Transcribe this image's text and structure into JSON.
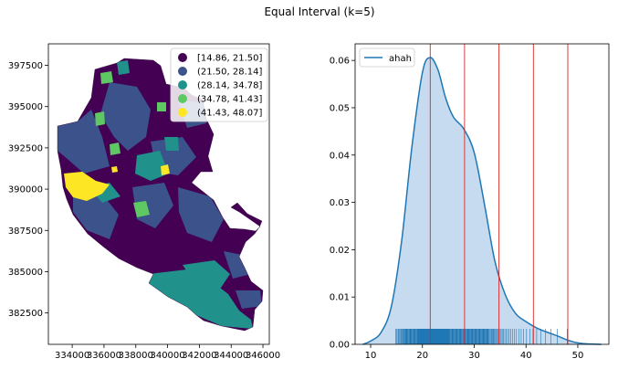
{
  "title": "Equal Interval (k=5)",
  "colors": {
    "class1": "#440154",
    "class2": "#3b528b",
    "class3": "#21918c",
    "class4": "#5ec962",
    "class5": "#fde725",
    "kde_line": "#1f77b4",
    "kde_fill": "#c6dbef",
    "rug": "#1f77b4",
    "bin_line": "#d62728"
  },
  "chart_data": [
    {
      "type": "map",
      "title": "",
      "xlabel": "",
      "ylabel": "",
      "xticks": [
        "334000",
        "336000",
        "338000",
        "340000",
        "342000",
        "344000",
        "346000"
      ],
      "yticks": [
        "382500",
        "385000",
        "387500",
        "390000",
        "392500",
        "395000",
        "397500"
      ],
      "xlim": [
        332500,
        346400
      ],
      "ylim": [
        380600,
        398800
      ],
      "legend_position": "top-right",
      "legend": [
        {
          "label": "[14.86, 21.50]",
          "color": "#440154"
        },
        {
          "label": "(21.50, 28.14]",
          "color": "#3b528b"
        },
        {
          "label": "(28.14, 34.78]",
          "color": "#21918c"
        },
        {
          "label": "(34.78, 41.43]",
          "color": "#5ec962"
        },
        {
          "label": "(41.43, 48.07]",
          "color": "#fde725"
        }
      ]
    },
    {
      "type": "area",
      "title": "",
      "xlabel": "",
      "ylabel": "",
      "xlim": [
        7,
        56
      ],
      "ylim": [
        0,
        0.0635
      ],
      "xticks": [
        10,
        20,
        30,
        40,
        50
      ],
      "yticks": [
        0.0,
        0.01,
        0.02,
        0.03,
        0.04,
        0.05,
        0.06
      ],
      "ytick_labels": [
        "0.00",
        "0.01",
        "0.02",
        "0.03",
        "0.04",
        "0.05",
        "0.06"
      ],
      "legend_position": "top-left",
      "series": [
        {
          "name": "ahah",
          "x": [
            8.5,
            10,
            12,
            14,
            16,
            18,
            20,
            21.5,
            23,
            24.5,
            26,
            28,
            30,
            32,
            34,
            36,
            38,
            40,
            42,
            44,
            46,
            48,
            50,
            52,
            54.5
          ],
          "y": [
            0.0,
            0.0007,
            0.0025,
            0.008,
            0.022,
            0.042,
            0.0575,
            0.0606,
            0.058,
            0.052,
            0.048,
            0.0455,
            0.0405,
            0.0295,
            0.0175,
            0.0105,
            0.0065,
            0.0048,
            0.0035,
            0.0026,
            0.0018,
            0.0009,
            0.0003,
            0.0001,
            0.0
          ]
        }
      ],
      "bin_edges": [
        21.5,
        28.14,
        34.78,
        41.43,
        48.07
      ],
      "rug_range": [
        14.86,
        48.07
      ]
    }
  ]
}
